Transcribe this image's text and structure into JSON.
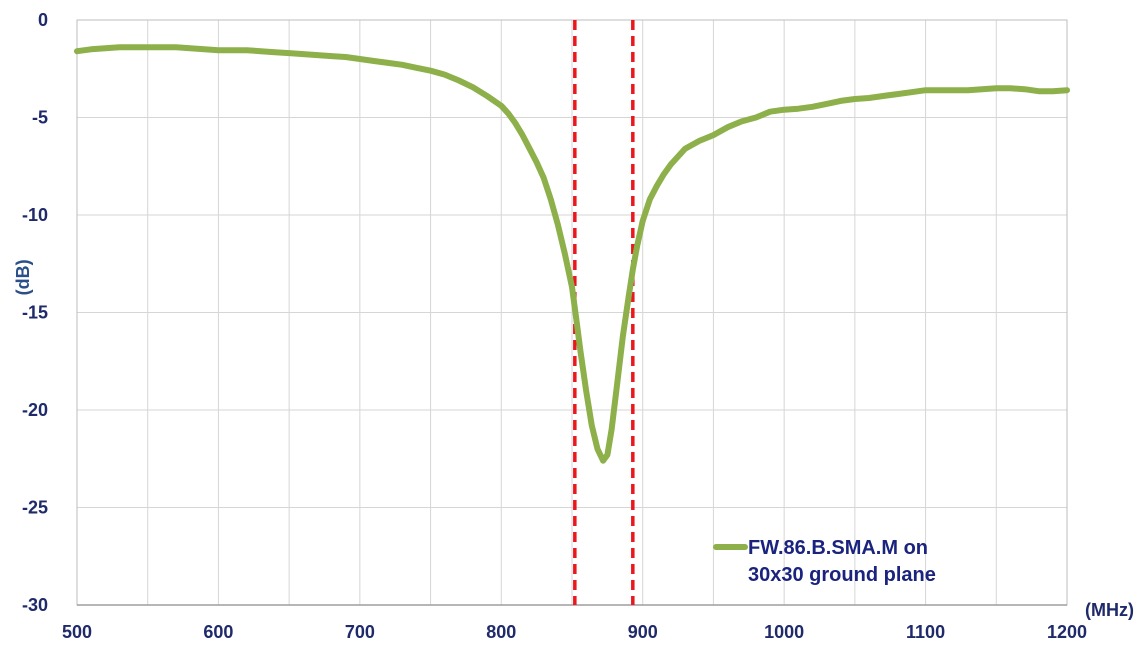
{
  "chart_data": {
    "type": "line",
    "title": "",
    "xlabel": "(MHz)",
    "ylabel": "(dB)",
    "xlim": [
      500,
      1200
    ],
    "ylim": [
      -30,
      0
    ],
    "x_major_ticks": [
      500,
      600,
      700,
      800,
      900,
      1000,
      1100,
      1200
    ],
    "x_minor_step": 50,
    "y_ticks": [
      0,
      -5,
      -10,
      -15,
      -20,
      -25,
      -30
    ],
    "grid": true,
    "legend_position": "bottom-right",
    "series": [
      {
        "name": "FW.86.B.SMA.M on 30x30 ground plane",
        "legend_lines": [
          "FW.86.B.SMA.M on",
          "30x30 ground plane"
        ],
        "color": "#8db04a",
        "x": [
          500,
          510,
          520,
          530,
          540,
          550,
          560,
          570,
          580,
          590,
          600,
          610,
          620,
          630,
          640,
          650,
          660,
          670,
          680,
          690,
          700,
          710,
          720,
          730,
          740,
          750,
          760,
          770,
          780,
          790,
          800,
          805,
          810,
          815,
          820,
          825,
          830,
          835,
          840,
          845,
          850,
          853,
          856,
          860,
          864,
          868,
          872,
          875,
          878,
          882,
          886,
          890,
          893,
          896,
          900,
          905,
          910,
          915,
          920,
          930,
          940,
          950,
          960,
          970,
          980,
          990,
          1000,
          1010,
          1020,
          1030,
          1040,
          1050,
          1060,
          1070,
          1080,
          1090,
          1100,
          1110,
          1120,
          1130,
          1140,
          1150,
          1160,
          1170,
          1180,
          1190,
          1200
        ],
        "y": [
          -1.6,
          -1.5,
          -1.45,
          -1.4,
          -1.4,
          -1.4,
          -1.4,
          -1.4,
          -1.45,
          -1.5,
          -1.55,
          -1.55,
          -1.55,
          -1.6,
          -1.65,
          -1.7,
          -1.75,
          -1.8,
          -1.85,
          -1.9,
          -2.0,
          -2.1,
          -2.2,
          -2.3,
          -2.45,
          -2.6,
          -2.8,
          -3.1,
          -3.45,
          -3.9,
          -4.4,
          -4.8,
          -5.3,
          -5.9,
          -6.6,
          -7.3,
          -8.1,
          -9.2,
          -10.5,
          -12.0,
          -13.7,
          -15.3,
          -17.0,
          -19.0,
          -20.8,
          -22.0,
          -22.6,
          -22.3,
          -21.0,
          -18.6,
          -16.2,
          -14.2,
          -12.8,
          -11.6,
          -10.3,
          -9.2,
          -8.5,
          -7.9,
          -7.4,
          -6.6,
          -6.2,
          -5.9,
          -5.5,
          -5.2,
          -5.0,
          -4.7,
          -4.6,
          -4.55,
          -4.45,
          -4.3,
          -4.15,
          -4.05,
          -4.0,
          -3.9,
          -3.8,
          -3.7,
          -3.6,
          -3.6,
          -3.6,
          -3.6,
          -3.55,
          -3.5,
          -3.5,
          -3.55,
          -3.65,
          -3.65,
          -3.6
        ]
      }
    ],
    "markers": [
      {
        "x": 852,
        "color": "#e8181e",
        "style": "dashed"
      },
      {
        "x": 893,
        "color": "#e8181e",
        "style": "dashed"
      }
    ]
  }
}
